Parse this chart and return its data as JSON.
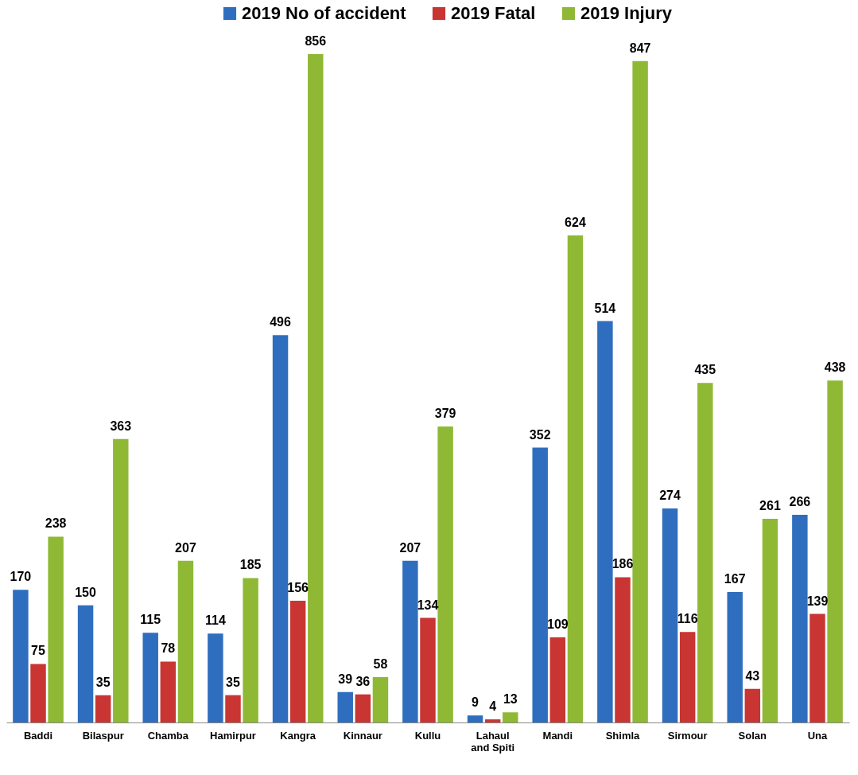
{
  "chart_data": {
    "type": "bar",
    "categories": [
      "Baddi",
      "Bilaspur",
      "Chamba",
      "Hamirpur",
      "Kangra",
      "Kinnaur",
      "Kullu",
      "Lahaul and Spiti",
      "Mandi",
      "Shimla",
      "Sirmour",
      "Solan",
      "Una"
    ],
    "series": [
      {
        "name": "2019 No of accident",
        "color": "#2f6ebf",
        "values": [
          170,
          150,
          115,
          114,
          496,
          39,
          207,
          9,
          352,
          514,
          274,
          167,
          266
        ]
      },
      {
        "name": "2019 Fatal",
        "color": "#c83532",
        "values": [
          75,
          35,
          78,
          35,
          156,
          36,
          134,
          4,
          109,
          186,
          116,
          43,
          139
        ]
      },
      {
        "name": "2019 Injury",
        "color": "#8fb935",
        "values": [
          238,
          363,
          207,
          185,
          856,
          58,
          379,
          13,
          624,
          847,
          435,
          261,
          438
        ]
      }
    ],
    "data_labels": true,
    "legend": "top",
    "tick_labels": "x"
  }
}
